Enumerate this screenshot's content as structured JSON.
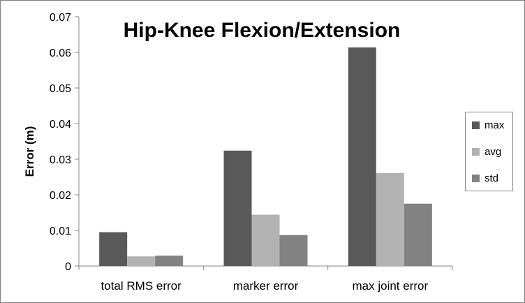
{
  "chart_data": {
    "type": "bar",
    "title": "Hip-Knee Flexion/Extension",
    "xlabel": "",
    "ylabel": "Error (m)",
    "ylim": [
      0,
      0.07
    ],
    "yticks": [
      "0",
      "0.01",
      "0.02",
      "0.03",
      "0.04",
      "0.05",
      "0.06",
      "0.07"
    ],
    "grid": false,
    "legend_position": "right",
    "categories": [
      "total RMS error",
      "marker error",
      "max joint error"
    ],
    "series": [
      {
        "name": "max",
        "color": "#595959",
        "values": [
          0.0095,
          0.0324,
          0.0614
        ]
      },
      {
        "name": "avg",
        "color": "#b2b2b2",
        "values": [
          0.0027,
          0.0144,
          0.0261
        ]
      },
      {
        "name": "std",
        "color": "#828282",
        "values": [
          0.0029,
          0.0087,
          0.0175
        ]
      }
    ]
  }
}
